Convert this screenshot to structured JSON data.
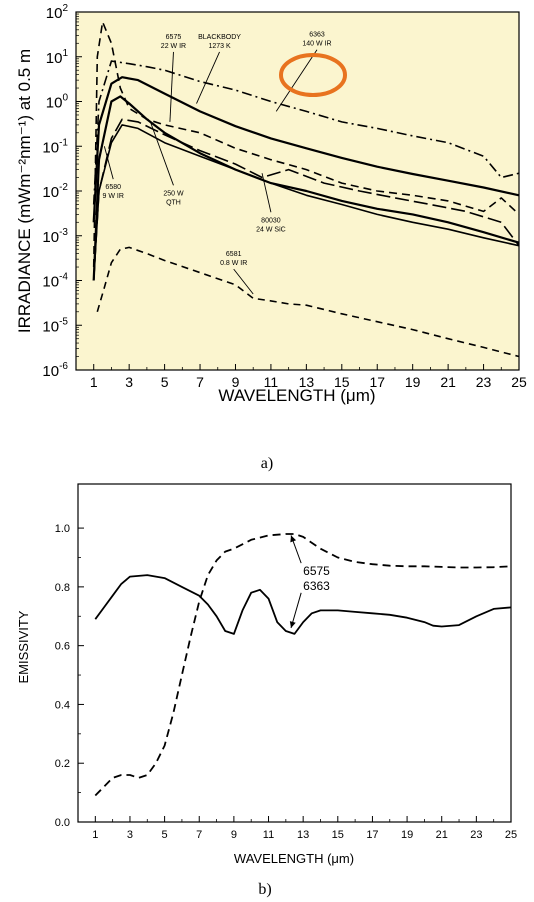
{
  "chart_data": [
    {
      "type": "line",
      "panel_caption": "a)",
      "xlabel": "WAVELENGTH (μm)",
      "ylabel": "IRRADIANCE (mWm⁻²nm⁻¹) at 0.5 m",
      "xlim": [
        0,
        25
      ],
      "ylim": [
        1e-06,
        100
      ],
      "yscale": "log",
      "xticks": [
        1,
        3,
        5,
        7,
        9,
        11,
        13,
        15,
        17,
        19,
        21,
        23,
        25
      ],
      "yticks": [
        {
          "base": "10",
          "exp": "-6",
          "value": 1e-06
        },
        {
          "base": "10",
          "exp": "-5",
          "value": 1e-05
        },
        {
          "base": "10",
          "exp": "-4",
          "value": 0.0001
        },
        {
          "base": "10",
          "exp": "-3",
          "value": 0.001
        },
        {
          "base": "10",
          "exp": "-2",
          "value": 0.01
        },
        {
          "base": "10",
          "exp": "-1",
          "value": 0.1
        },
        {
          "base": "10",
          "exp": "0",
          "value": 1
        },
        {
          "base": "10",
          "exp": "1",
          "value": 10
        },
        {
          "base": "10",
          "exp": "2",
          "value": 100
        }
      ],
      "background": "#fbf5cf",
      "highlight_color": "#e8731f",
      "series": [
        {
          "id": "s6575",
          "style": "dashdot",
          "width": 1.6,
          "x": [
            1.0,
            1.3,
            2,
            3,
            4,
            5,
            7,
            9,
            11,
            13,
            15,
            17,
            19,
            21,
            23,
            24,
            25
          ],
          "y": [
            0.005,
            1,
            8,
            7,
            6,
            5,
            2.8,
            1.8,
            1.0,
            0.6,
            0.35,
            0.25,
            0.17,
            0.12,
            0.06,
            0.02,
            0.025
          ]
        },
        {
          "id": "s6363",
          "style": "dash",
          "width": 1.6,
          "x": [
            1.0,
            1.2,
            1.5,
            2,
            2.5,
            3,
            4,
            5,
            7,
            9,
            11,
            13,
            15,
            17,
            19,
            21,
            23,
            24,
            25
          ],
          "y": [
            0.0002,
            10,
            60,
            20,
            2,
            0.7,
            0.4,
            0.3,
            0.2,
            0.09,
            0.05,
            0.03,
            0.015,
            0.01,
            0.008,
            0.006,
            0.0035,
            0.007,
            0.003
          ]
        },
        {
          "id": "sblackbody",
          "style": "solid",
          "width": 2.2,
          "x": [
            1.0,
            1.3,
            2,
            2.6,
            3.5,
            5,
            7,
            9,
            11,
            13,
            15,
            17,
            19,
            21,
            23,
            25
          ],
          "y": [
            0.002,
            0.3,
            2.5,
            3.5,
            3,
            1.5,
            0.6,
            0.28,
            0.15,
            0.09,
            0.055,
            0.035,
            0.024,
            0.017,
            0.012,
            0.008
          ]
        },
        {
          "id": "sQTH",
          "style": "solid",
          "width": 2.2,
          "x": [
            1.0,
            1.3,
            2,
            2.5,
            3,
            4,
            5,
            7,
            9,
            11,
            13,
            15,
            17,
            19,
            21,
            23,
            25
          ],
          "y": [
            0.0001,
            0.05,
            1.0,
            1.3,
            0.9,
            0.4,
            0.2,
            0.07,
            0.03,
            0.015,
            0.01,
            0.006,
            0.004,
            0.003,
            0.002,
            0.0012,
            0.0007
          ]
        },
        {
          "id": "s6580",
          "style": "solid",
          "width": 1.6,
          "x": [
            1.0,
            1.3,
            2,
            2.6,
            3.5,
            5,
            7,
            9,
            11,
            13,
            15,
            17,
            19,
            21,
            23,
            25
          ],
          "y": [
            0.0001,
            0.01,
            0.12,
            0.3,
            0.25,
            0.12,
            0.06,
            0.03,
            0.015,
            0.008,
            0.005,
            0.003,
            0.002,
            0.0014,
            0.0009,
            0.0006
          ]
        },
        {
          "id": "sSiC",
          "style": "longdash",
          "width": 1.6,
          "x": [
            1.0,
            1.3,
            2,
            2.6,
            3.5,
            5,
            7,
            9,
            10.5,
            12,
            14,
            16,
            18,
            20,
            22,
            24,
            25
          ],
          "y": [
            0.0001,
            0.01,
            0.15,
            0.4,
            0.35,
            0.18,
            0.08,
            0.04,
            0.02,
            0.03,
            0.015,
            0.01,
            0.007,
            0.005,
            0.0035,
            0.002,
            0.0006
          ]
        },
        {
          "id": "s6581",
          "style": "shortdash",
          "width": 1.6,
          "x": [
            1.2,
            1.6,
            2,
            2.5,
            3,
            4,
            5,
            7,
            9,
            10,
            11,
            12,
            13,
            15,
            17,
            19,
            21,
            23,
            25
          ],
          "y": [
            2e-05,
            7e-05,
            0.00025,
            0.0005,
            0.00055,
            0.0004,
            0.00028,
            0.00015,
            8e-05,
            4e-05,
            3.5e-05,
            3e-05,
            2.8e-05,
            1.8e-05,
            1.2e-05,
            8e-06,
            5e-06,
            3.2e-06,
            2e-06
          ]
        }
      ],
      "annotations": [
        {
          "id": "ann6575",
          "lines": [
            "6575",
            "22 W IR"
          ],
          "x": 5.5,
          "y": 25,
          "arrow_to": [
            5.3,
            0.35
          ]
        },
        {
          "id": "annbb",
          "lines": [
            "BLACKBODY",
            "1273 K"
          ],
          "x": 8.1,
          "y": 25,
          "arrow_to": [
            6.8,
            0.9
          ]
        },
        {
          "id": "ann6363",
          "lines": [
            "6363",
            "140 W IR"
          ],
          "x": 13.6,
          "y": 28,
          "arrow_to": [
            11.3,
            0.6
          ],
          "highlighted": true
        },
        {
          "id": "ann6580",
          "lines": [
            "6580",
            "9 W IR"
          ],
          "x": 2.1,
          "y": 0.011,
          "arrow_to": [
            1.6,
            0.1
          ]
        },
        {
          "id": "annqth",
          "lines": [
            "250 W",
            "QTH"
          ],
          "x": 5.5,
          "y": 0.008,
          "arrow_to": [
            4.2,
            0.35
          ]
        },
        {
          "id": "annsic",
          "lines": [
            "80030",
            "24 W SiC"
          ],
          "x": 11.0,
          "y": 0.002,
          "arrow_to": [
            10.5,
            0.025
          ]
        },
        {
          "id": "ann6581",
          "lines": [
            "6581",
            "0.8 W IR"
          ],
          "x": 8.9,
          "y": 0.00035,
          "arrow_to": [
            10.0,
            5e-05
          ]
        }
      ]
    },
    {
      "type": "line",
      "panel_caption": "b)",
      "xlabel": "WAVELENGTH (μm)",
      "ylabel": "EMISSIVITY",
      "xlim": [
        0,
        25
      ],
      "ylim": [
        0,
        1.15
      ],
      "xticks": [
        1,
        3,
        5,
        7,
        9,
        11,
        13,
        15,
        17,
        19,
        21,
        23,
        25
      ],
      "yticks": [
        "0.0",
        "0.2",
        "0.4",
        "0.6",
        "0.8",
        "1.0"
      ],
      "series": [
        {
          "id": "e6575",
          "name": "6575",
          "style": "dash",
          "width": 1.8,
          "x": [
            1,
            1.5,
            2,
            2.5,
            3,
            3.5,
            4,
            4.5,
            5,
            5.5,
            6,
            6.5,
            7,
            7.5,
            8,
            8.5,
            9,
            10,
            11,
            12,
            12.5,
            13,
            14,
            15,
            16,
            17,
            18,
            19,
            20,
            21,
            22,
            23,
            24,
            25
          ],
          "y": [
            0.09,
            0.12,
            0.15,
            0.16,
            0.16,
            0.15,
            0.16,
            0.2,
            0.26,
            0.37,
            0.5,
            0.63,
            0.75,
            0.84,
            0.89,
            0.92,
            0.93,
            0.96,
            0.975,
            0.98,
            0.98,
            0.97,
            0.93,
            0.9,
            0.885,
            0.877,
            0.872,
            0.87,
            0.87,
            0.868,
            0.866,
            0.866,
            0.867,
            0.87
          ]
        },
        {
          "id": "e6363",
          "name": "6363",
          "style": "solid",
          "width": 1.8,
          "x": [
            1,
            1.5,
            2,
            2.5,
            3,
            4,
            5,
            6,
            7,
            7.5,
            8,
            8.5,
            9,
            9.5,
            10,
            10.5,
            11,
            11.5,
            12,
            12.5,
            13,
            13.5,
            14,
            15,
            16,
            17,
            18,
            19,
            20,
            20.5,
            21,
            22,
            23,
            24,
            25
          ],
          "y": [
            0.69,
            0.73,
            0.77,
            0.81,
            0.835,
            0.84,
            0.83,
            0.8,
            0.77,
            0.74,
            0.7,
            0.65,
            0.64,
            0.72,
            0.78,
            0.79,
            0.76,
            0.68,
            0.65,
            0.64,
            0.68,
            0.71,
            0.72,
            0.72,
            0.715,
            0.71,
            0.705,
            0.695,
            0.68,
            0.668,
            0.665,
            0.67,
            0.7,
            0.725,
            0.73
          ]
        }
      ],
      "annotations": [
        {
          "id": "eann6575",
          "text": "6575",
          "x": 13.0,
          "y": 0.84,
          "arrow_to": [
            12.3,
            0.975
          ]
        },
        {
          "id": "eann6363",
          "text": "6363",
          "x": 13.0,
          "y": 0.79,
          "arrow_to": [
            12.3,
            0.66
          ]
        }
      ]
    }
  ]
}
